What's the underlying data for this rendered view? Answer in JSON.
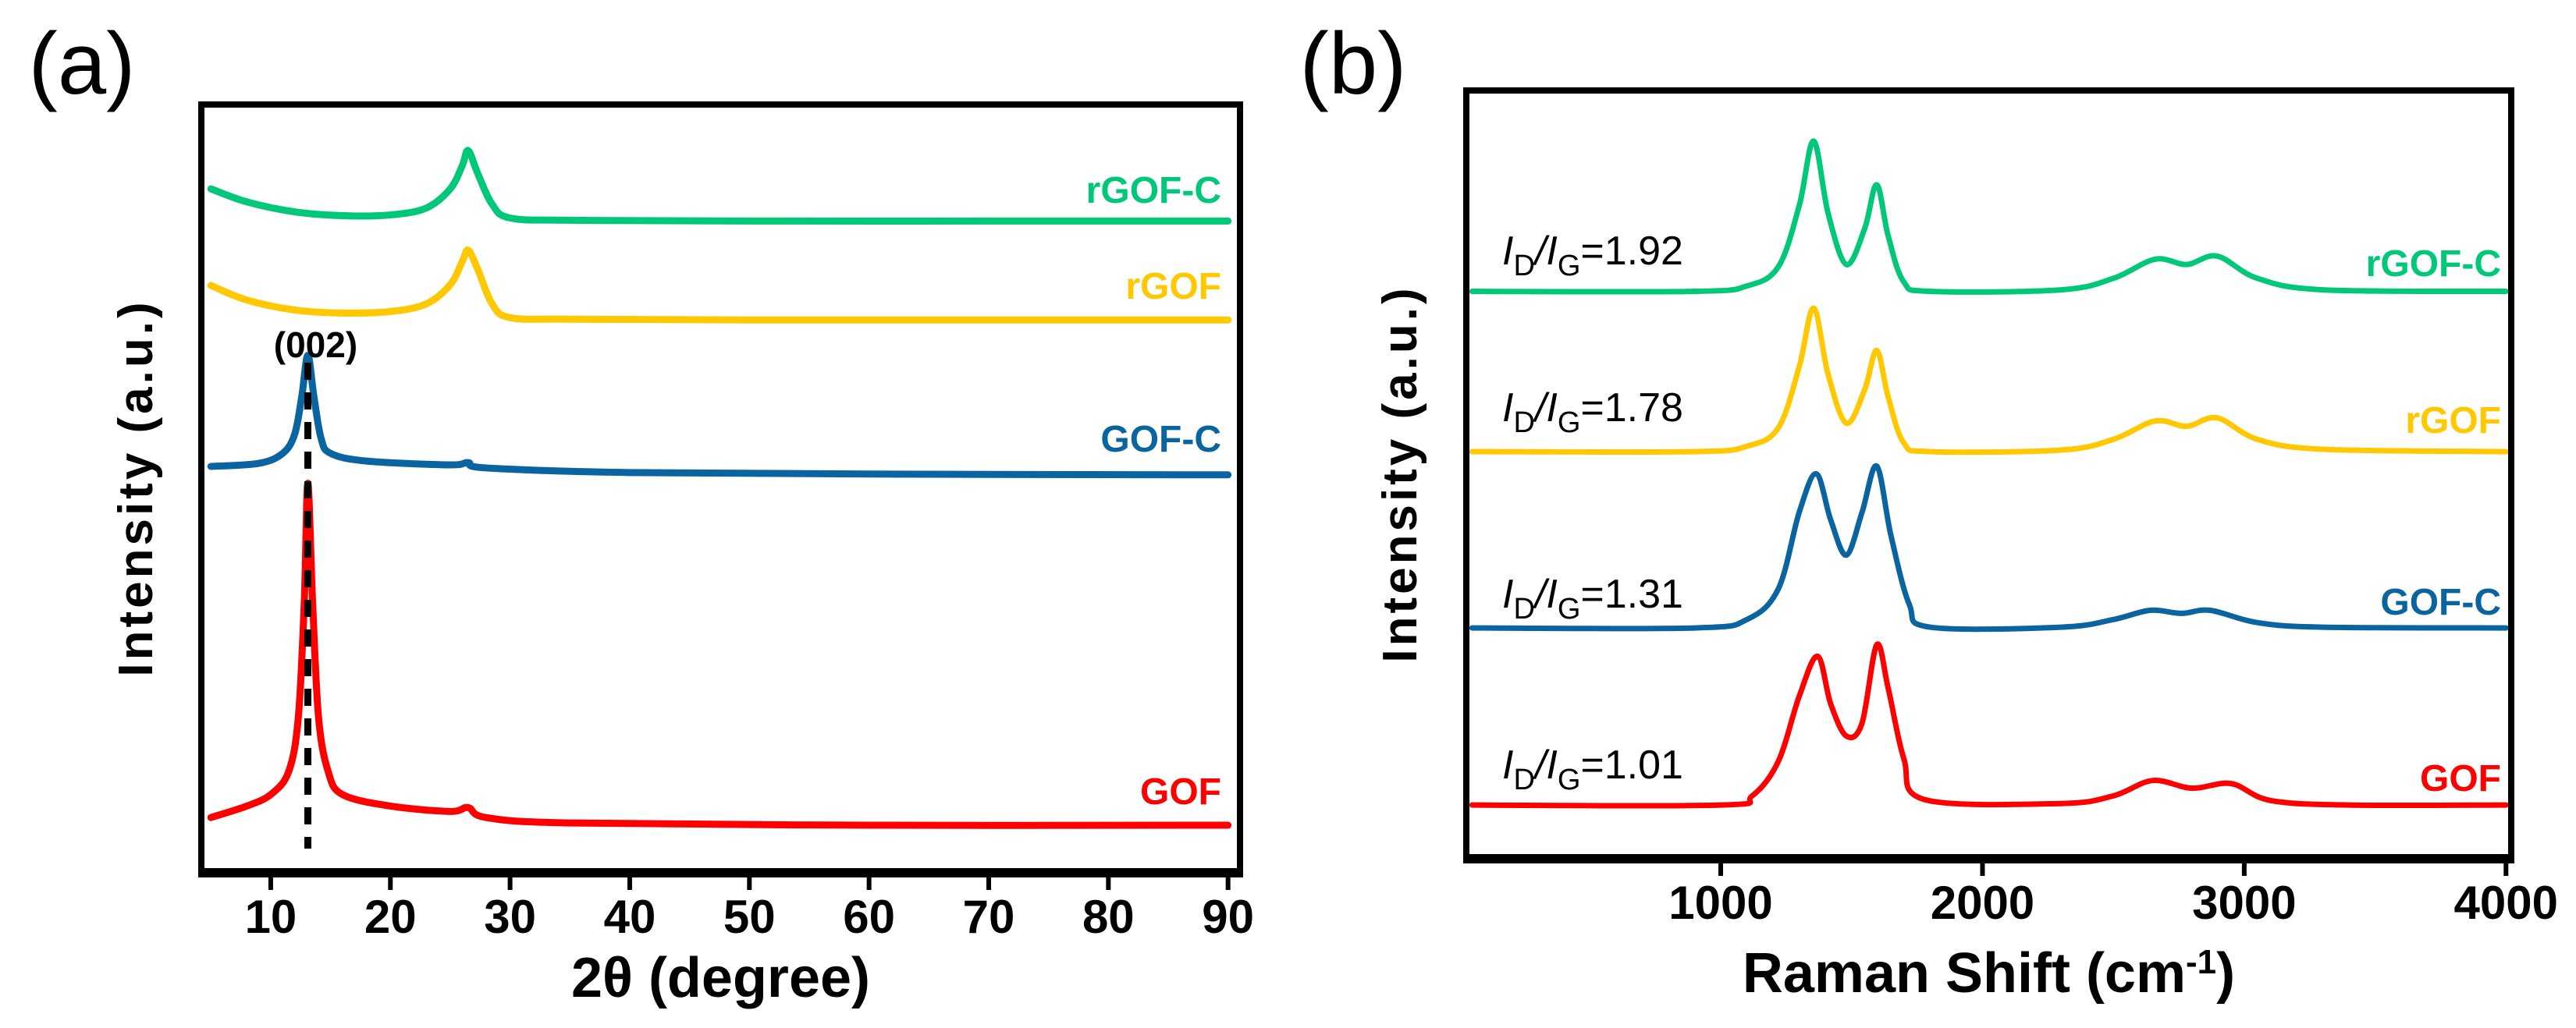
{
  "chart_data": [
    {
      "panel_label": "(a)",
      "type": "line",
      "xlabel": "2θ (degree)",
      "ylabel": "Intensity (a.u.)",
      "xlim": [
        4.2,
        91
      ],
      "ylim": [
        0,
        100
      ],
      "xticks": [
        10,
        20,
        30,
        40,
        50,
        60,
        70,
        80,
        90
      ],
      "grid": false,
      "annotation": {
        "text": "(002)",
        "x": 13.1,
        "dashed_line": true
      },
      "series": [
        {
          "name": "rGOF-C",
          "color": "#00c878",
          "points": [
            [
              5,
              89
            ],
            [
              8,
              87.3
            ],
            [
              12,
              86
            ],
            [
              16,
              85.5
            ],
            [
              20,
              85.6
            ],
            [
              23,
              86.5
            ],
            [
              25,
              89
            ],
            [
              26,
              92
            ],
            [
              26.5,
              94
            ],
            [
              27.3,
              91
            ],
            [
              28.5,
              87
            ],
            [
              30,
              85.2
            ],
            [
              35,
              84.9
            ],
            [
              50,
              84.8
            ],
            [
              70,
              84.8
            ],
            [
              90,
              84.8
            ]
          ]
        },
        {
          "name": "rGOF",
          "color": "#ffc800",
          "points": [
            [
              5,
              76.4
            ],
            [
              8,
              74.5
            ],
            [
              12,
              73.2
            ],
            [
              16,
              72.8
            ],
            [
              20,
              73
            ],
            [
              23,
              74
            ],
            [
              25,
              76.5
            ],
            [
              26,
              79.5
            ],
            [
              26.5,
              81
            ],
            [
              27.3,
              78.5
            ],
            [
              28.5,
              74
            ],
            [
              30,
              72.2
            ],
            [
              35,
              72
            ],
            [
              50,
              71.9
            ],
            [
              70,
              71.9
            ],
            [
              90,
              71.9
            ]
          ]
        },
        {
          "name": "GOF-C",
          "color": "#0a64a0",
          "points": [
            [
              5,
              52.8
            ],
            [
              9,
              53.2
            ],
            [
              11,
              54.5
            ],
            [
              12,
              57
            ],
            [
              12.6,
              62
            ],
            [
              13.1,
              67.3
            ],
            [
              13.6,
              62
            ],
            [
              14.2,
              56.5
            ],
            [
              15,
              54.5
            ],
            [
              18,
              53.5
            ],
            [
              25,
              53
            ],
            [
              26.5,
              53.3
            ],
            [
              28,
              52.6
            ],
            [
              40,
              52
            ],
            [
              60,
              51.8
            ],
            [
              90,
              51.7
            ]
          ]
        },
        {
          "name": "GOF",
          "color": "#ff0000",
          "points": [
            [
              5,
              7
            ],
            [
              8,
              8.5
            ],
            [
              10,
              10
            ],
            [
              11.5,
              13
            ],
            [
              12.3,
              20
            ],
            [
              12.8,
              35
            ],
            [
              13.1,
              50.6
            ],
            [
              13.5,
              35
            ],
            [
              14,
              20
            ],
            [
              14.8,
              13
            ],
            [
              16,
              10
            ],
            [
              20,
              8.5
            ],
            [
              25,
              7.8
            ],
            [
              26.5,
              8.3
            ],
            [
              28,
              7
            ],
            [
              35,
              6.3
            ],
            [
              60,
              6
            ],
            [
              90,
              6
            ]
          ]
        }
      ]
    },
    {
      "panel_label": "(b)",
      "type": "line",
      "xlabel": "Raman Shift (cm",
      "xlabel_sup": "-1",
      "xlabel_end": ")",
      "ylabel": "Intensity (a.u.)",
      "xlim": [
        28,
        4020
      ],
      "ylim": [
        0,
        100
      ],
      "xticks": [
        1000,
        2000,
        3000,
        4000
      ],
      "grid": false,
      "series": [
        {
          "name": "rGOF-C",
          "color": "#00c878",
          "ratio": "1.92",
          "points": [
            [
              50,
              73.8
            ],
            [
              900,
              73.8
            ],
            [
              1100,
              74.5
            ],
            [
              1220,
              77
            ],
            [
              1300,
              85
            ],
            [
              1355,
              93.4
            ],
            [
              1410,
              84
            ],
            [
              1480,
              77.3
            ],
            [
              1550,
              82
            ],
            [
              1596,
              87.7
            ],
            [
              1640,
              81
            ],
            [
              1700,
              75
            ],
            [
              1800,
              73.8
            ],
            [
              2300,
              74
            ],
            [
              2500,
              75.5
            ],
            [
              2660,
              78
            ],
            [
              2780,
              77.3
            ],
            [
              2896,
              78.4
            ],
            [
              3050,
              75.5
            ],
            [
              3300,
              74
            ],
            [
              4000,
              73.8
            ]
          ]
        },
        {
          "name": "rGOF",
          "color": "#ffc800",
          "ratio": "1.78",
          "points": [
            [
              50,
              52.9
            ],
            [
              900,
              52.9
            ],
            [
              1100,
              53.6
            ],
            [
              1220,
              56
            ],
            [
              1300,
              64
            ],
            [
              1355,
              71.6
            ],
            [
              1410,
              63
            ],
            [
              1480,
              56.6
            ],
            [
              1550,
              61
            ],
            [
              1596,
              66.1
            ],
            [
              1640,
              60
            ],
            [
              1700,
              54
            ],
            [
              1800,
              52.9
            ],
            [
              2300,
              53.1
            ],
            [
              2500,
              54.5
            ],
            [
              2660,
              56.9
            ],
            [
              2780,
              56.2
            ],
            [
              2896,
              57.3
            ],
            [
              3050,
              54.5
            ],
            [
              3300,
              53.2
            ],
            [
              4000,
              52.9
            ]
          ]
        },
        {
          "name": "GOF-C",
          "color": "#0a64a0",
          "ratio": "1.31",
          "points": [
            [
              50,
              29.9
            ],
            [
              900,
              29.9
            ],
            [
              1100,
              31
            ],
            [
              1220,
              35
            ],
            [
              1300,
              45
            ],
            [
              1365,
              50
            ],
            [
              1420,
              44
            ],
            [
              1480,
              39.4
            ],
            [
              1540,
              45
            ],
            [
              1596,
              51
            ],
            [
              1650,
              42
            ],
            [
              1720,
              33
            ],
            [
              1800,
              30
            ],
            [
              2300,
              30
            ],
            [
              2500,
              31
            ],
            [
              2640,
              32.2
            ],
            [
              2760,
              31.8
            ],
            [
              2870,
              32.2
            ],
            [
              3050,
              30.6
            ],
            [
              3300,
              30
            ],
            [
              4000,
              29.9
            ]
          ]
        },
        {
          "name": "GOF",
          "color": "#ff0000",
          "ratio": "1.01",
          "points": [
            [
              50,
              6.8
            ],
            [
              1000,
              6.8
            ],
            [
              1120,
              8
            ],
            [
              1220,
              12.5
            ],
            [
              1300,
              21
            ],
            [
              1370,
              26.2
            ],
            [
              1420,
              20
            ],
            [
              1480,
              15.8
            ],
            [
              1540,
              17.5
            ],
            [
              1596,
              27.7
            ],
            [
              1640,
              22
            ],
            [
              1700,
              12.8
            ],
            [
              1780,
              7.5
            ],
            [
              2300,
              7
            ],
            [
              2500,
              8
            ],
            [
              2650,
              10
            ],
            [
              2800,
              9
            ],
            [
              2950,
              9.6
            ],
            [
              3100,
              7.4
            ],
            [
              3400,
              6.8
            ],
            [
              4000,
              6.8
            ]
          ]
        }
      ]
    }
  ],
  "ratio_label": {
    "I": "I",
    "D": "D",
    "slash": "/",
    "G": "G",
    "eq": "="
  }
}
